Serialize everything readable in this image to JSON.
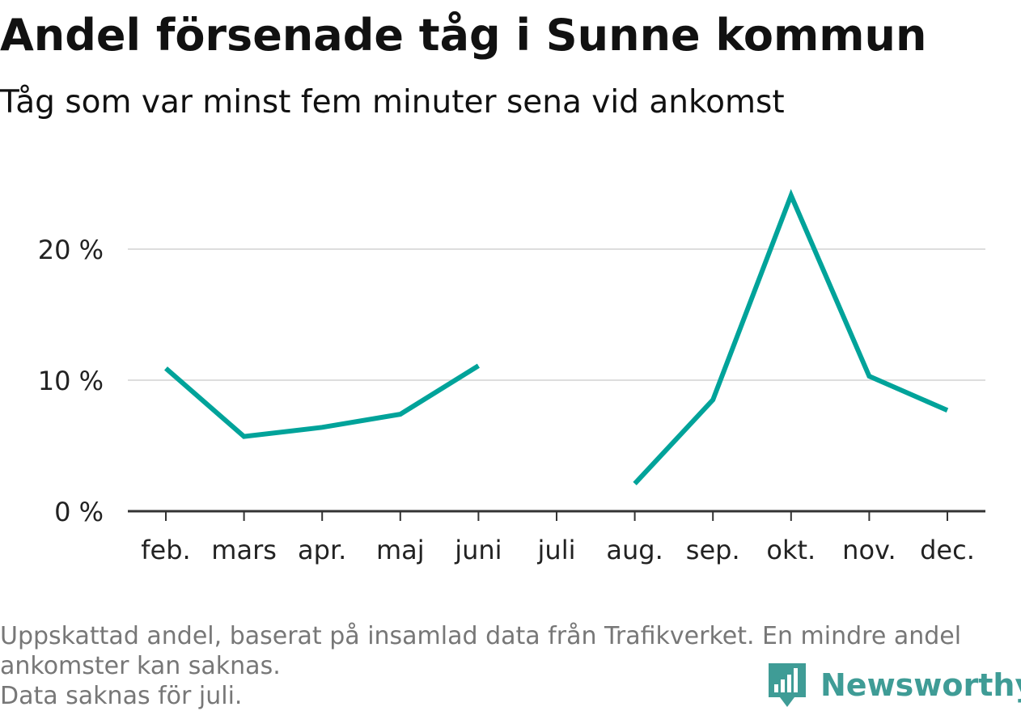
{
  "title": "Andel försenade tåg i Sunne kommun",
  "subtitle": "Tåg som var minst fem minuter sena vid ankomst",
  "caption_lines": [
    "Uppskattad andel, baserat på insamlad data från Trafikverket. En mindre andel",
    "ankomster kan saknas.",
    "Data saknas för juli."
  ],
  "brand": {
    "name": "Newsworthy",
    "icon": "bar-chart-speech-bubble-icon",
    "color": "#3f9c96"
  },
  "chart_data": {
    "type": "line",
    "categories": [
      "feb.",
      "mars",
      "apr.",
      "maj",
      "juni",
      "juli",
      "aug.",
      "sep.",
      "okt.",
      "nov.",
      "dec."
    ],
    "series": [
      {
        "values": [
          10.9,
          5.7,
          6.4,
          7.4,
          11.1,
          null,
          2.1,
          8.5,
          24.1,
          10.3,
          7.7
        ],
        "color": "#00a39a"
      }
    ],
    "yticks": [
      0,
      10,
      20
    ],
    "ytick_labels": [
      "0 %",
      "10 %",
      "20 %"
    ],
    "ylim": [
      0,
      26
    ],
    "grid": true,
    "xlabel": "",
    "ylabel": ""
  }
}
